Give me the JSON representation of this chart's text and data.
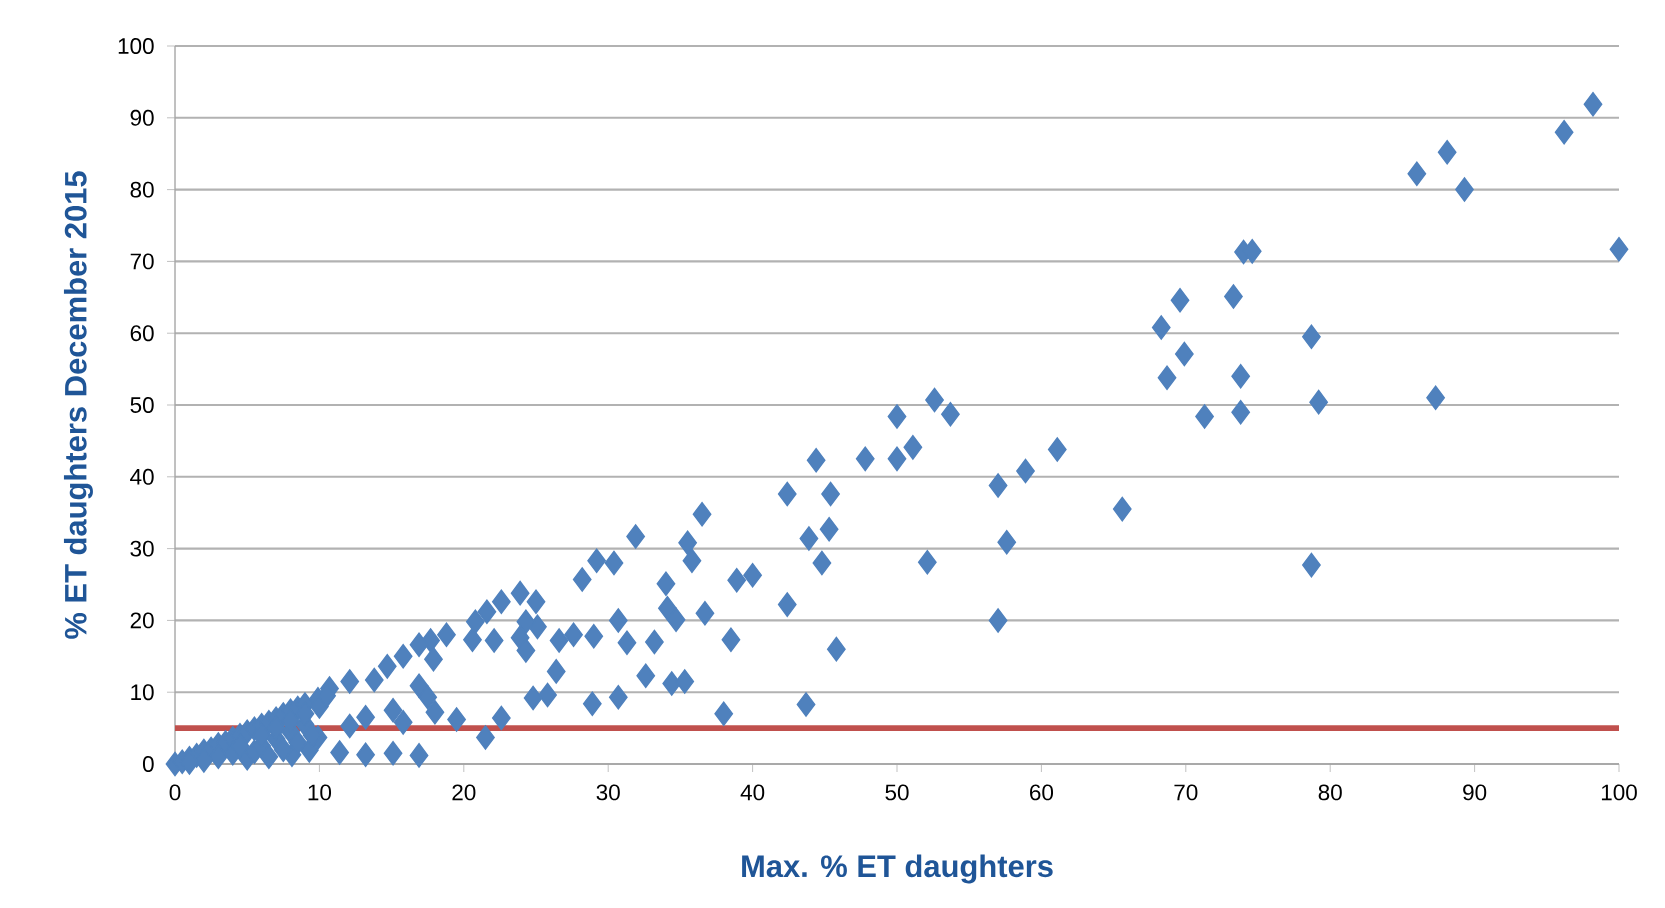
{
  "chart_data": {
    "type": "scatter",
    "xlabel": "Max. % ET daughters",
    "ylabel": "% ET daughters December 2015",
    "xlim": [
      0,
      100
    ],
    "ylim": [
      0,
      100
    ],
    "xticks": [
      0,
      10,
      20,
      30,
      40,
      50,
      60,
      70,
      80,
      90,
      100
    ],
    "yticks": [
      0,
      10,
      20,
      30,
      40,
      50,
      60,
      70,
      80,
      90,
      100
    ],
    "grid": "y",
    "marker": "diamond",
    "ref_lines": [
      {
        "axis": "y",
        "value": 5,
        "color": "#c0504d"
      }
    ],
    "series": [
      {
        "color": "#4f81bd",
        "x": [
          98.2,
          96.2,
          88.1,
          86.0,
          89.3,
          100,
          74.0,
          74.6,
          73.3,
          69.6,
          68.3,
          78.7,
          69.9,
          68.7,
          73.8,
          79.2,
          87.3,
          71.3,
          73.8,
          78.7,
          65.6,
          61.1,
          58.9,
          57.0,
          57.6,
          57.0,
          52.6,
          53.7,
          50.0,
          50.0,
          51.1,
          52.1,
          47.8,
          44.4,
          42.4,
          45.4,
          43.9,
          45.3,
          44.8,
          42.4,
          45.8,
          43.7,
          36.5,
          35.5,
          35.8,
          31.9,
          29.2,
          30.4,
          28.2,
          34.0,
          38.9,
          40.0,
          36.7,
          34.1,
          34.7,
          30.7,
          31.3,
          33.2,
          38.5,
          29.0,
          27.6,
          26.6,
          26.4,
          32.6,
          34.4,
          35.3,
          30.7,
          28.9,
          25.8,
          24.8,
          38.0,
          25.0,
          23.9,
          22.6,
          21.6,
          20.8,
          25.1,
          24.3,
          23.9,
          24.3,
          22.1,
          20.6,
          22.6,
          21.5,
          18.8,
          17.7,
          16.9,
          15.8,
          14.7,
          13.8,
          12.1,
          10.7,
          9.9,
          17.9,
          16.9,
          17.5,
          18.0,
          19.5,
          15.1,
          13.2,
          12.1,
          15.8,
          11.4,
          13.2,
          15.1,
          16.9,
          9.3,
          9.9,
          8.1,
          0,
          0.5,
          1,
          1.5,
          2,
          2.5,
          3,
          3.5,
          4,
          4.5,
          5,
          5.5,
          6,
          6.5,
          7,
          7.5,
          8,
          8.5,
          9,
          3,
          4,
          5,
          5.5,
          6,
          6.5,
          7,
          7.5,
          8,
          8.5,
          9,
          9.5,
          2,
          1,
          4.5,
          6,
          7,
          8,
          9,
          10,
          10.5
        ],
        "values": [
          91.9,
          88.0,
          85.2,
          82.2,
          80.0,
          71.7,
          71.3,
          71.4,
          65.1,
          64.6,
          60.8,
          59.5,
          57.1,
          53.8,
          54.0,
          50.4,
          51.0,
          48.4,
          49.0,
          27.7,
          35.5,
          43.8,
          40.8,
          38.8,
          30.9,
          20.0,
          50.7,
          48.7,
          48.4,
          42.5,
          44.1,
          28.1,
          42.5,
          42.3,
          37.6,
          37.6,
          31.4,
          32.7,
          28.0,
          22.2,
          16.0,
          8.3,
          34.8,
          30.8,
          28.3,
          31.7,
          28.3,
          28.0,
          25.7,
          25.1,
          25.6,
          26.3,
          21.0,
          21.7,
          20.1,
          20.0,
          16.9,
          17.0,
          17.3,
          17.8,
          18.0,
          17.2,
          12.9,
          12.3,
          11.2,
          11.5,
          9.3,
          8.4,
          9.6,
          9.2,
          7.0,
          22.6,
          23.8,
          22.6,
          21.2,
          19.8,
          19.1,
          19.8,
          17.6,
          15.8,
          17.2,
          17.3,
          6.4,
          3.7,
          18.0,
          17.2,
          16.6,
          15.0,
          13.6,
          11.7,
          11.5,
          10.5,
          9.0,
          14.6,
          10.9,
          9.3,
          7.2,
          6.2,
          7.5,
          6.5,
          5.3,
          5.8,
          1.6,
          1.3,
          1.5,
          1.2,
          1.9,
          3.7,
          1.3,
          0,
          0.3,
          0.8,
          1.2,
          1.8,
          2.1,
          2.7,
          3,
          3.6,
          4,
          4.5,
          4.9,
          5.4,
          5.8,
          6.3,
          6.9,
          7.4,
          7.8,
          8.3,
          1,
          1.5,
          0.8,
          1.7,
          2.5,
          1,
          3.5,
          2,
          4.5,
          3,
          5.5,
          4,
          0.5,
          0.2,
          2.5,
          4,
          5,
          6,
          7,
          8,
          9.5
        ]
      }
    ]
  }
}
